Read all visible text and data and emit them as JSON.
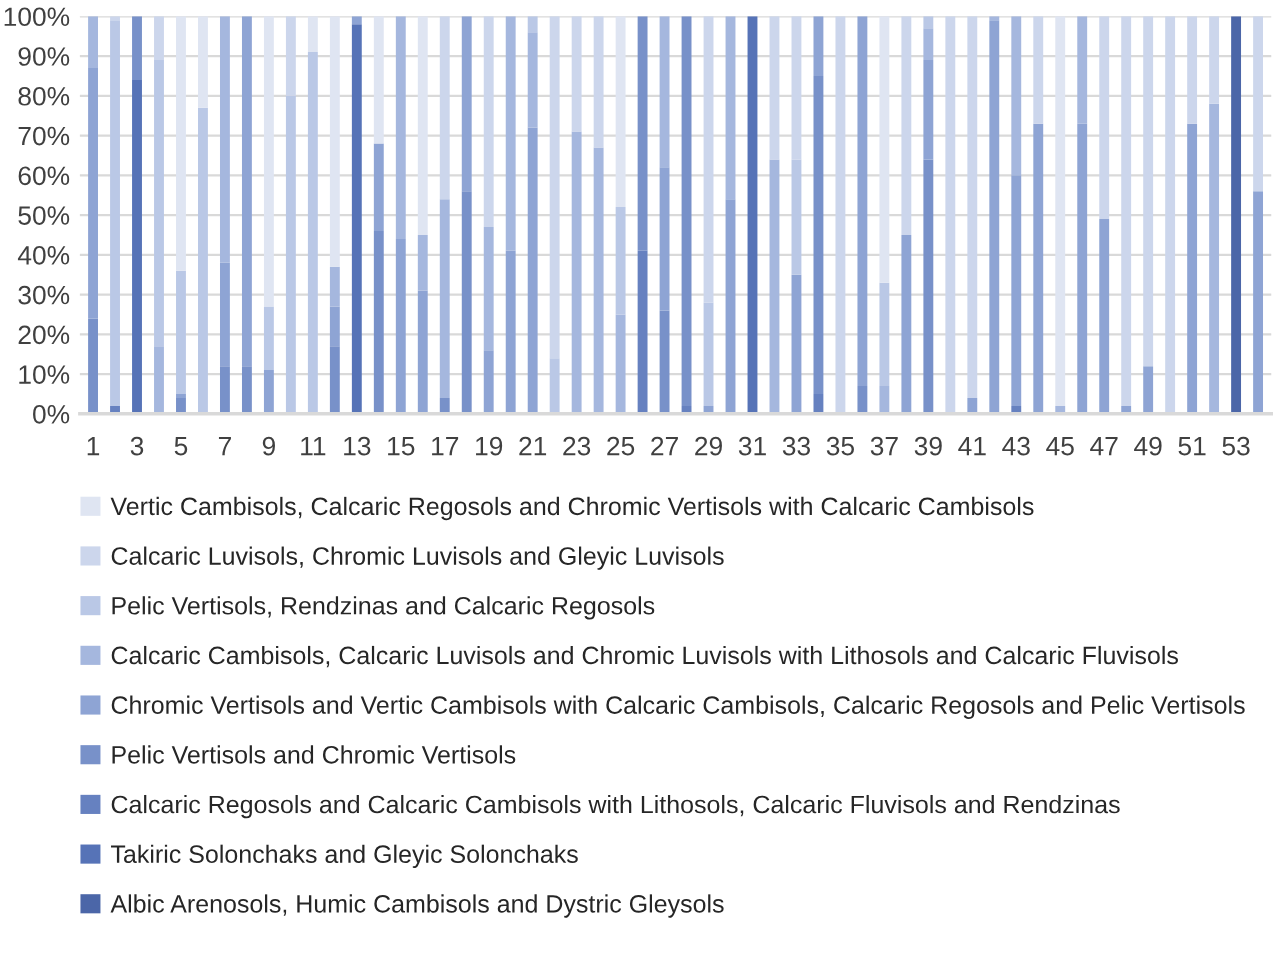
{
  "chart_data": {
    "type": "bar",
    "stacked": true,
    "categories": [
      "1",
      null,
      "3",
      null,
      "5",
      null,
      "7",
      null,
      "9",
      null,
      "11",
      null,
      "13",
      null,
      "15",
      null,
      "17",
      null,
      "19",
      null,
      "21",
      null,
      "23",
      null,
      "25",
      null,
      "27",
      null,
      "29",
      null,
      "31",
      null,
      "33",
      null,
      "35",
      null,
      "37",
      null,
      "39",
      null,
      "41",
      null,
      "43",
      null,
      "45",
      null,
      "47",
      null,
      "49",
      null,
      "51",
      null,
      "53",
      null
    ],
    "series": [
      {
        "name": "Albic Arenosols, Humic Cambisols and Dystric Gleysols",
        "color": "#4b66a8",
        "values": [
          0,
          0,
          0,
          0,
          0,
          0,
          0,
          0,
          0,
          0,
          0,
          0,
          0,
          0,
          0,
          0,
          0,
          0,
          0,
          0,
          0,
          0,
          0,
          0,
          0,
          0,
          0,
          0,
          0,
          0,
          0,
          0,
          0,
          0,
          0,
          0,
          0,
          0,
          0,
          0,
          0,
          0,
          0,
          0,
          0,
          0,
          0,
          0,
          0,
          0,
          0,
          0,
          100,
          0
        ]
      },
      {
        "name": "Takiric Solonchaks and Gleyic Solonchaks",
        "color": "#5673b7",
        "values": [
          0,
          0,
          84,
          0,
          0,
          0,
          0,
          0,
          0,
          0,
          0,
          0,
          98,
          0,
          0,
          0,
          0,
          0,
          0,
          0,
          0,
          0,
          0,
          0,
          0,
          0,
          0,
          0,
          0,
          0,
          100,
          0,
          0,
          0,
          0,
          0,
          0,
          0,
          0,
          0,
          0,
          0,
          0,
          0,
          0,
          0,
          0,
          0,
          0,
          0,
          0,
          0,
          0,
          0
        ]
      },
      {
        "name": "Calcaric Regosols and Calcaric Cambisols with Lithosols, Calcaric Fluvisols and Rendzinas",
        "color": "#6681c0",
        "values": [
          0,
          2,
          0,
          0,
          0,
          0,
          0,
          0,
          0,
          0,
          0,
          0,
          0,
          0,
          0,
          0,
          0,
          0,
          0,
          0,
          0,
          0,
          0,
          0,
          0,
          41,
          0,
          2,
          0,
          0,
          0,
          0,
          0,
          5,
          0,
          0,
          0,
          0,
          0,
          0,
          0,
          0,
          2,
          0,
          0,
          0,
          0,
          0,
          0,
          0,
          0,
          0,
          0,
          0
        ]
      },
      {
        "name": "Pelic Vertisols and Chromic Vertisols",
        "color": "#7891c9",
        "values": [
          24,
          0,
          16,
          0,
          4,
          0,
          12,
          12,
          0,
          0,
          0,
          17,
          0,
          46,
          0,
          0,
          4,
          56,
          0,
          0,
          0,
          0,
          0,
          0,
          0,
          59,
          26,
          98,
          0,
          0,
          0,
          0,
          0,
          80,
          0,
          7,
          0,
          0,
          64,
          0,
          0,
          0,
          0,
          0,
          0,
          0,
          0,
          0,
          0,
          0,
          0,
          0,
          0,
          0
        ]
      },
      {
        "name": "Chromic Vertisols and Vertic Cambisols with Calcaric Cambisols, Calcaric Regosols and Pelic Vertisols",
        "color": "#8ea4d4",
        "values": [
          63,
          0,
          0,
          0,
          1,
          0,
          26,
          88,
          11,
          0,
          0,
          10,
          2,
          22,
          44,
          31,
          0,
          44,
          16,
          41,
          72,
          0,
          0,
          0,
          0,
          0,
          36,
          0,
          2,
          54,
          0,
          0,
          35,
          15,
          0,
          93,
          0,
          45,
          25,
          0,
          4,
          99,
          58,
          73,
          0,
          73,
          49,
          2,
          12,
          0,
          73,
          0,
          0,
          56
        ]
      },
      {
        "name": "Calcaric Cambisols, Calcaric Luvisols and Chromic Luvisols with Lithosols and Calcaric Fluvisols",
        "color": "#a5b7de",
        "values": [
          13,
          0,
          0,
          17,
          0,
          0,
          62,
          0,
          0,
          0,
          0,
          10,
          0,
          0,
          56,
          14,
          50,
          0,
          31,
          59,
          24,
          0,
          71,
          67,
          25,
          0,
          38,
          0,
          0,
          46,
          0,
          64,
          0,
          0,
          0,
          0,
          7,
          0,
          8,
          0,
          0,
          1,
          40,
          0,
          2,
          27,
          0,
          0,
          0,
          0,
          0,
          78,
          0,
          0
        ]
      },
      {
        "name": "Pelic Vertisols, Rendzinas and Calcaric Regosols",
        "color": "#bac8e6",
        "values": [
          0,
          97,
          0,
          72,
          31,
          77,
          0,
          0,
          16,
          80,
          91,
          0,
          0,
          0,
          0,
          0,
          0,
          0,
          0,
          0,
          4,
          14,
          0,
          0,
          27,
          0,
          0,
          0,
          26,
          0,
          0,
          0,
          29,
          0,
          0,
          0,
          26,
          0,
          3,
          0,
          0,
          0,
          0,
          0,
          0,
          0,
          0,
          0,
          0,
          0,
          0,
          0,
          0,
          0
        ]
      },
      {
        "name": "Calcaric Luvisols, Chromic Luvisols and Gleyic Luvisols",
        "color": "#ccd6ec",
        "values": [
          0,
          1,
          0,
          11,
          0,
          0,
          0,
          0,
          0,
          20,
          0,
          0,
          0,
          0,
          0,
          0,
          46,
          0,
          53,
          0,
          0,
          86,
          29,
          33,
          0,
          0,
          0,
          0,
          72,
          0,
          0,
          36,
          36,
          0,
          100,
          0,
          0,
          55,
          0,
          100,
          96,
          0,
          0,
          27,
          0,
          0,
          51,
          98,
          88,
          100,
          27,
          22,
          0,
          44
        ]
      },
      {
        "name": "Vertic Cambisols, Calcaric Regosols and Chromic Vertisols with Calcaric Cambisols",
        "color": "#dfe5f2",
        "values": [
          0,
          0,
          0,
          0,
          64,
          23,
          0,
          0,
          73,
          0,
          9,
          63,
          0,
          32,
          0,
          55,
          0,
          0,
          0,
          0,
          0,
          0,
          0,
          0,
          48,
          0,
          0,
          0,
          0,
          0,
          0,
          0,
          0,
          0,
          0,
          0,
          67,
          0,
          0,
          0,
          0,
          0,
          0,
          0,
          98,
          0,
          0,
          0,
          0,
          0,
          0,
          0,
          0,
          0
        ]
      }
    ],
    "ylim": [
      0,
      100
    ],
    "yticks": [
      {
        "value": 0,
        "label": "0%"
      },
      {
        "value": 10,
        "label": "10%"
      },
      {
        "value": 20,
        "label": "20%"
      },
      {
        "value": 30,
        "label": "30%"
      },
      {
        "value": 40,
        "label": "40%"
      },
      {
        "value": 50,
        "label": "50%"
      },
      {
        "value": 60,
        "label": "60%"
      },
      {
        "value": 70,
        "label": "70%"
      },
      {
        "value": 80,
        "label": "80%"
      },
      {
        "value": 90,
        "label": "90%"
      },
      {
        "value": 100,
        "label": "100%"
      }
    ],
    "grid": "y",
    "legend": "bottom"
  }
}
